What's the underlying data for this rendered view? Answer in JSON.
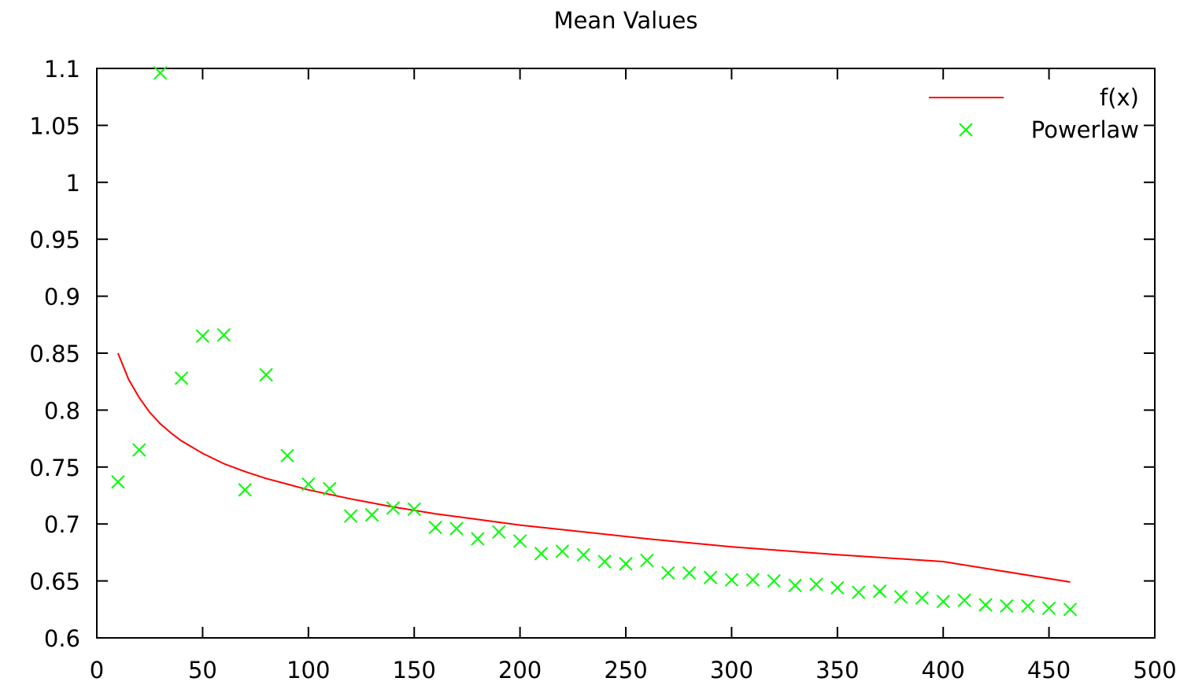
{
  "chart_data": {
    "type": "scatter",
    "title": "Mean Values",
    "xlabel": "",
    "ylabel": "",
    "xlim": [
      0,
      500
    ],
    "ylim": [
      0.6,
      1.1
    ],
    "xticks": [
      "0",
      "50",
      "100",
      "150",
      "200",
      "250",
      "300",
      "350",
      "400",
      "450",
      "500"
    ],
    "yticks": [
      "0.6",
      "0.65",
      "0.7",
      "0.75",
      "0.8",
      "0.85",
      "0.9",
      "0.95",
      "1",
      "1.05",
      "1.1"
    ],
    "grid": false,
    "legend_position": "top-right",
    "colors": {
      "line": "#ff0000",
      "points": "#00ff00",
      "axes": "#000000"
    },
    "series": [
      {
        "name": "f(x)",
        "kind": "line",
        "x": [
          10,
          15,
          20,
          25,
          30,
          35,
          40,
          50,
          60,
          70,
          80,
          90,
          100,
          120,
          140,
          160,
          180,
          200,
          230,
          260,
          300,
          350,
          400,
          460
        ],
        "y": [
          0.85,
          0.827,
          0.811,
          0.798,
          0.788,
          0.78,
          0.773,
          0.762,
          0.753,
          0.746,
          0.74,
          0.735,
          0.73,
          0.722,
          0.715,
          0.709,
          0.704,
          0.699,
          0.693,
          0.687,
          0.68,
          0.673,
          0.667,
          0.649
        ]
      },
      {
        "name": "Powerlaw",
        "kind": "points",
        "x": [
          10,
          20,
          30,
          40,
          50,
          60,
          70,
          80,
          90,
          100,
          110,
          120,
          130,
          140,
          150,
          160,
          170,
          180,
          190,
          200,
          210,
          220,
          230,
          240,
          250,
          260,
          270,
          280,
          290,
          300,
          310,
          320,
          330,
          340,
          350,
          360,
          370,
          380,
          390,
          400,
          410,
          420,
          430,
          440,
          450,
          460
        ],
        "y": [
          0.737,
          0.765,
          1.096,
          0.828,
          0.865,
          0.866,
          0.73,
          0.831,
          0.76,
          0.735,
          0.731,
          0.707,
          0.708,
          0.714,
          0.713,
          0.697,
          0.696,
          0.687,
          0.693,
          0.685,
          0.674,
          0.676,
          0.673,
          0.667,
          0.665,
          0.668,
          0.657,
          0.657,
          0.653,
          0.651,
          0.651,
          0.65,
          0.646,
          0.647,
          0.644,
          0.64,
          0.641,
          0.636,
          0.635,
          0.632,
          0.633,
          0.629,
          0.628,
          0.628,
          0.626,
          0.625
        ]
      }
    ]
  }
}
